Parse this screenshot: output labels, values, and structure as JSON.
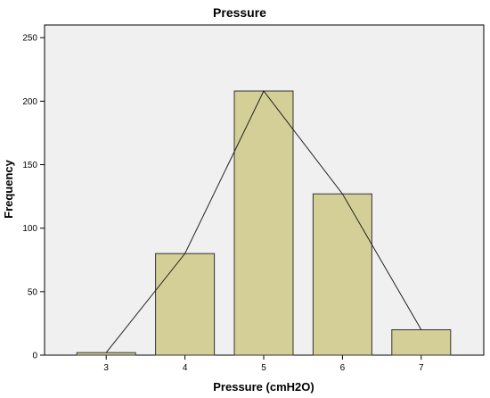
{
  "chart_data": {
    "type": "bar",
    "title": "Pressure",
    "xlabel": "Pressure (cmH2O)",
    "ylabel": "Frequency",
    "categories": [
      "3",
      "4",
      "5",
      "6",
      "7"
    ],
    "values": [
      2,
      80,
      208,
      127,
      20
    ],
    "ylim": [
      0,
      260
    ],
    "yticks": [
      0,
      50,
      100,
      150,
      200,
      250
    ],
    "grid": false,
    "overlay": "frequency polygon",
    "colors": {
      "plot_background": "#f0f0f0",
      "bar_fill": "#d3cf96",
      "bar_stroke": "#333333",
      "line": "#222222"
    }
  }
}
